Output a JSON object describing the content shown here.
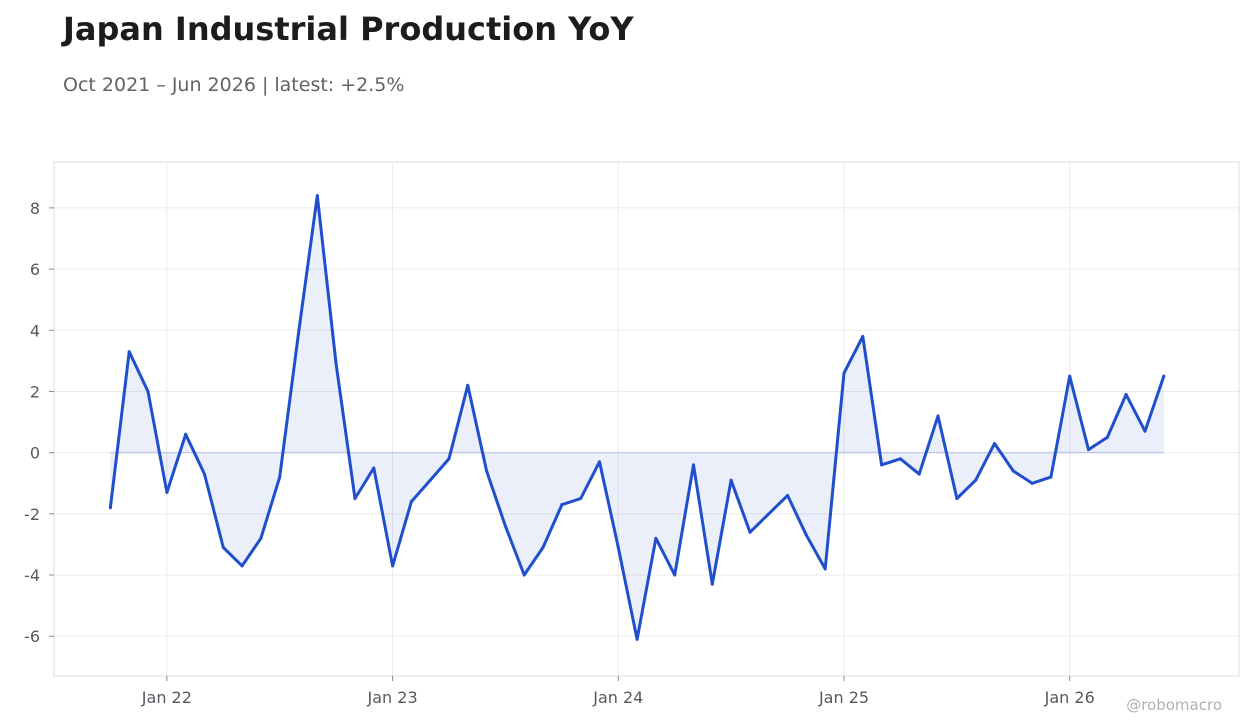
{
  "title": "Japan Industrial Production YoY",
  "subtitle": "Oct 2021 – Jun 2026 | latest: +2.5%",
  "watermark": "@robomacro",
  "colors": {
    "line": "#1f4fcc",
    "fill": "#1f4fcc",
    "grid": "#ebebeb",
    "frame": "#dddddd"
  },
  "chart_data": {
    "type": "area",
    "title": "Japan Industrial Production YoY",
    "xlabel": "",
    "ylabel": "",
    "x_ticks": [
      {
        "label": "Jan 22",
        "date": "2022-01"
      },
      {
        "label": "Jan 23",
        "date": "2023-01"
      },
      {
        "label": "Jan 24",
        "date": "2024-01"
      },
      {
        "label": "Jan 25",
        "date": "2025-01"
      },
      {
        "label": "Jan 26",
        "date": "2026-01"
      }
    ],
    "y_ticks": [
      -6,
      -4,
      -2,
      0,
      2,
      4,
      6,
      8
    ],
    "ylim": [
      -7.3,
      9.5
    ],
    "xlim": [
      "2021-07",
      "2026-10"
    ],
    "grid": true,
    "legend": "none",
    "series": [
      {
        "x": [
          "2021-10",
          "2021-11",
          "2021-12",
          "2022-01",
          "2022-02",
          "2022-03",
          "2022-04",
          "2022-05",
          "2022-06",
          "2022-07",
          "2022-08",
          "2022-09",
          "2022-10",
          "2022-11",
          "2022-12",
          "2023-01",
          "2023-02",
          "2023-03",
          "2023-04",
          "2023-05",
          "2023-06",
          "2023-07",
          "2023-08",
          "2023-09",
          "2023-10",
          "2023-11",
          "2023-12",
          "2024-01",
          "2024-02",
          "2024-03",
          "2024-04",
          "2024-05",
          "2024-06",
          "2024-07",
          "2024-08",
          "2024-09",
          "2024-10",
          "2024-11",
          "2024-12",
          "2025-01",
          "2025-02",
          "2025-03",
          "2025-04",
          "2025-05",
          "2025-06",
          "2025-07",
          "2025-08",
          "2025-09",
          "2025-10",
          "2025-11",
          "2025-12",
          "2026-01",
          "2026-02",
          "2026-03",
          "2026-04",
          "2026-05",
          "2026-06"
        ],
        "values": [
          -1.8,
          3.3,
          2.0,
          -1.3,
          0.6,
          -0.7,
          -3.1,
          -3.7,
          -2.8,
          -0.8,
          3.9,
          8.4,
          2.9,
          -1.5,
          -0.5,
          -3.7,
          -1.6,
          -0.9,
          -0.2,
          2.2,
          -0.6,
          -2.4,
          -4.0,
          -3.1,
          -1.7,
          -1.5,
          -0.3,
          -3.1,
          -6.1,
          -2.8,
          -4.0,
          -0.4,
          -4.3,
          -0.9,
          -2.6,
          -2.0,
          -1.4,
          -2.7,
          -3.8,
          2.6,
          3.8,
          -0.4,
          -0.2,
          -0.7,
          1.2,
          -1.5,
          -0.9,
          0.3,
          -0.6,
          -1.0,
          -0.8,
          2.5,
          0.1,
          0.5,
          1.9,
          0.7,
          2.5
        ]
      }
    ]
  }
}
